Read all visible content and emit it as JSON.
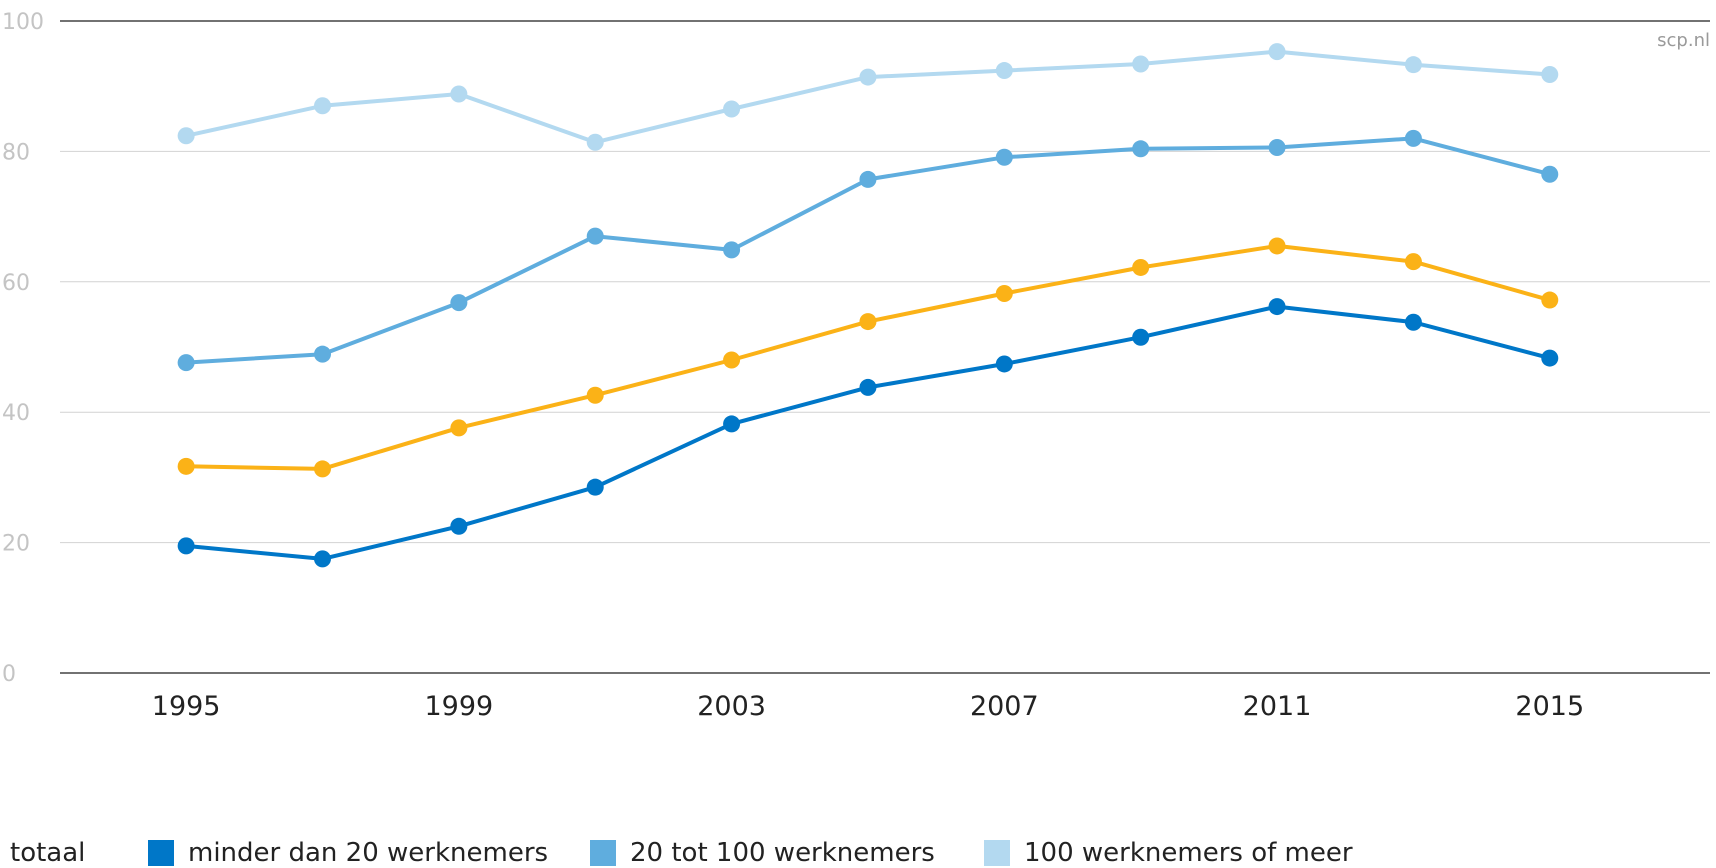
{
  "source_label": "scp.nl",
  "chart_data": {
    "type": "line",
    "x": [
      1995,
      1997,
      1999,
      2001,
      2003,
      2005,
      2007,
      2009,
      2011,
      2013,
      2015
    ],
    "x_tick_labels": [
      "1995",
      "1999",
      "2003",
      "2007",
      "2011",
      "2015"
    ],
    "x_tick_values": [
      1995,
      1999,
      2003,
      2007,
      2011,
      2015
    ],
    "y_ticks": [
      0,
      20,
      40,
      60,
      80,
      100
    ],
    "ylim": [
      0,
      100
    ],
    "grid": true,
    "legend_position": "bottom",
    "series": [
      {
        "name": "totaal",
        "color": "#fbb217",
        "show_swatch": false,
        "values": [
          31.7,
          31.3,
          37.6,
          42.6,
          48.0,
          53.9,
          58.2,
          62.2,
          65.5,
          63.1,
          57.2
        ]
      },
      {
        "name": "minder dan 20 werknemers",
        "color": "#0077c8",
        "show_swatch": true,
        "values": [
          19.5,
          17.5,
          22.5,
          28.5,
          38.2,
          43.8,
          47.4,
          51.5,
          56.2,
          53.8,
          48.3
        ]
      },
      {
        "name": "20 tot 100 werknemers",
        "color": "#5fadde",
        "show_swatch": true,
        "values": [
          47.6,
          48.9,
          56.8,
          67.0,
          64.9,
          75.7,
          79.1,
          80.4,
          80.6,
          82.0,
          76.5
        ]
      },
      {
        "name": "100 werknemers of meer",
        "color": "#b3d9f0",
        "show_swatch": true,
        "values": [
          82.4,
          87.0,
          88.8,
          81.4,
          86.5,
          91.4,
          92.4,
          93.4,
          95.3,
          93.3,
          91.8
        ]
      }
    ]
  }
}
